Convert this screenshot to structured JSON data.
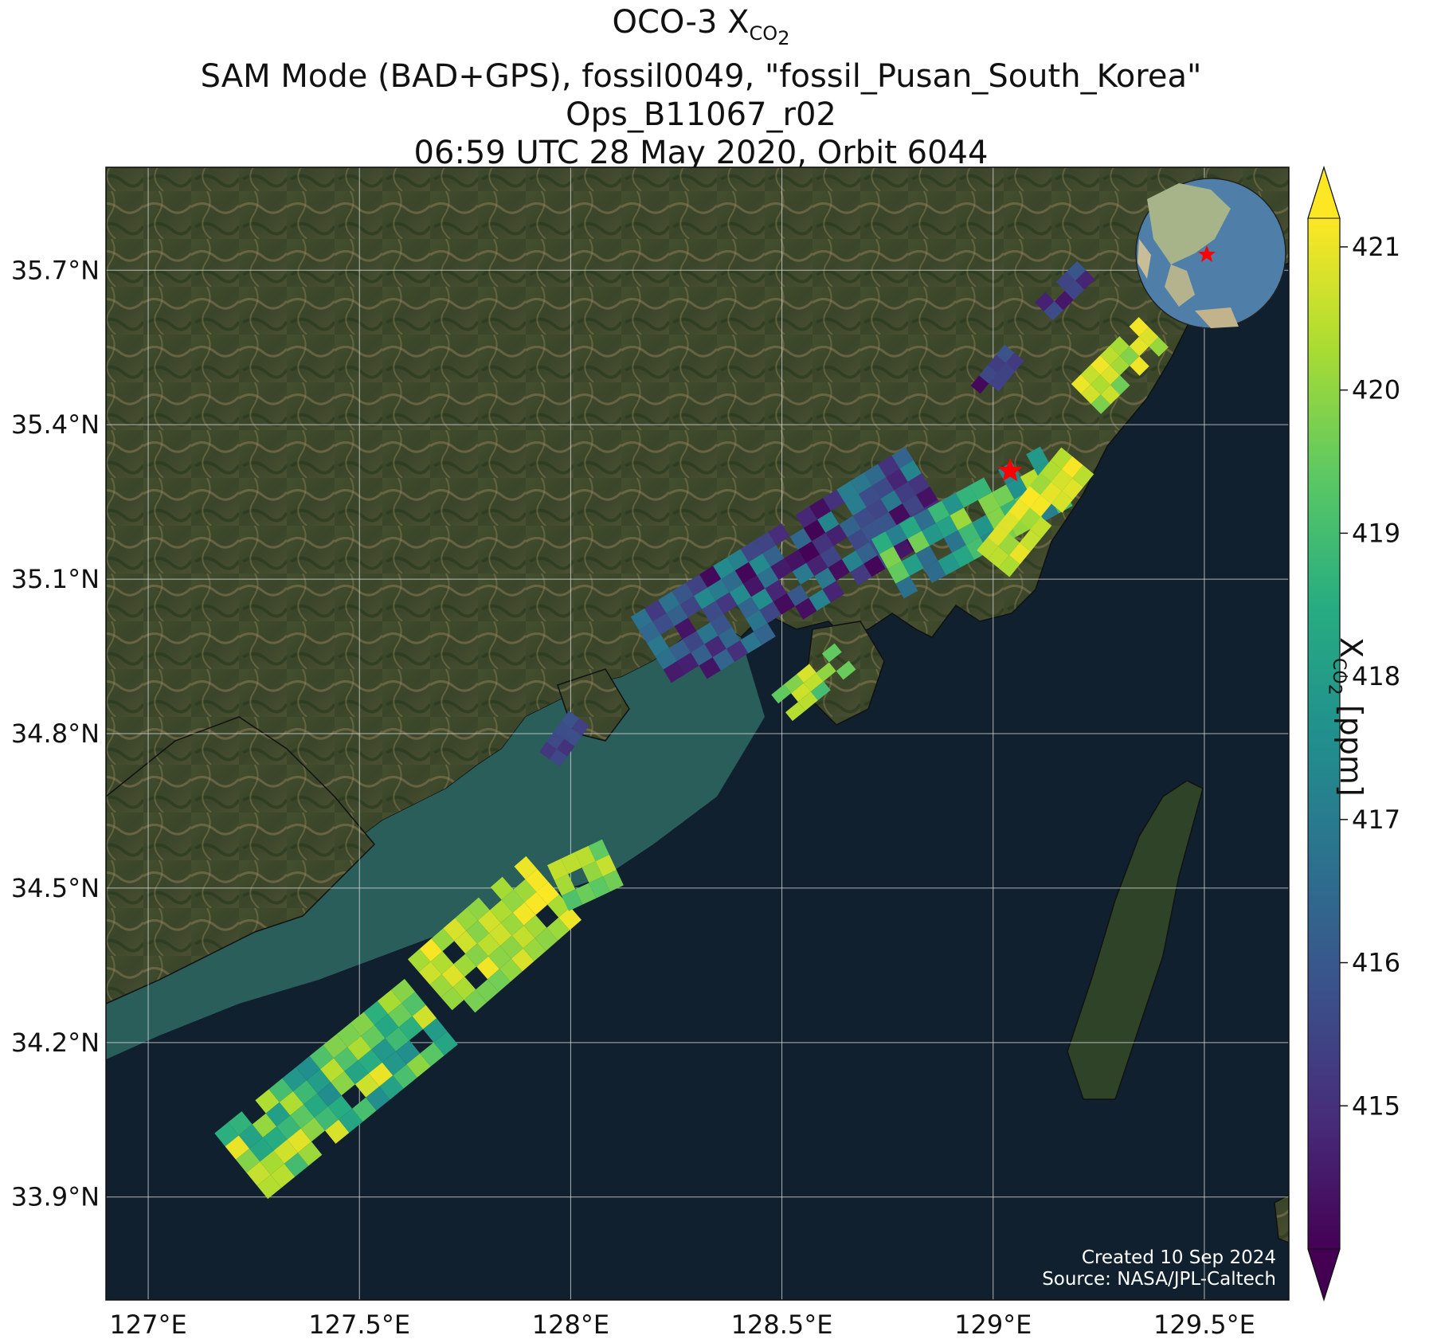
{
  "title": {
    "line1_main": "OCO-3 X",
    "line1_sub": "CO",
    "line1_subsub": "2",
    "line2": "SAM Mode (BAD+GPS), fossil0049, \"fossil_Pusan_South_Korea\"",
    "line3": "Ops_B11067_r02",
    "line4": "06:59 UTC 28 May 2020, Orbit 6044"
  },
  "map": {
    "lon_range": [
      126.9,
      129.7
    ],
    "lat_range": [
      33.7,
      35.9
    ],
    "lon_ticks": [
      {
        "value": 127.0,
        "label": "127°E"
      },
      {
        "value": 127.5,
        "label": "127.5°E"
      },
      {
        "value": 128.0,
        "label": "128°E"
      },
      {
        "value": 128.5,
        "label": "128.5°E"
      },
      {
        "value": 129.0,
        "label": "129°E"
      },
      {
        "value": 129.5,
        "label": "129.5°E"
      }
    ],
    "lat_ticks": [
      {
        "value": 35.7,
        "label": "35.7°N"
      },
      {
        "value": 35.4,
        "label": "35.4°N"
      },
      {
        "value": 35.1,
        "label": "35.1°N"
      },
      {
        "value": 34.8,
        "label": "34.8°N"
      },
      {
        "value": 34.5,
        "label": "34.5°N"
      },
      {
        "value": 34.2,
        "label": "34.2°N"
      },
      {
        "value": 33.9,
        "label": "33.9°N"
      }
    ],
    "target_site": {
      "lon": 129.04,
      "lat": 35.31,
      "marker": "red-star",
      "color": "#ff0000"
    },
    "credit_line1": "Created 10 Sep 2024",
    "credit_line2": "Source: NASA/JPL-Caltech",
    "colors": {
      "land": "#3f4a2e",
      "sea": "#10202f",
      "shallow_sea": "#2f6a62",
      "grid": "#d8d8d8"
    }
  },
  "colorbar": {
    "label_main": "X",
    "label_sub": "CO",
    "label_subsub": "2",
    "label_units": " [ppm]",
    "colormap": "viridis",
    "vmin": 414.0,
    "vmax": 421.2,
    "extend": "both",
    "ticks": [
      {
        "value": 415,
        "label": "415"
      },
      {
        "value": 416,
        "label": "416"
      },
      {
        "value": 417,
        "label": "417"
      },
      {
        "value": 418,
        "label": "418"
      },
      {
        "value": 419,
        "label": "419"
      },
      {
        "value": 420,
        "label": "420"
      },
      {
        "value": 421,
        "label": "421"
      }
    ]
  },
  "swaths": [
    {
      "name": "southern-swath-lower",
      "start": [
        127.22,
        33.96
      ],
      "end": [
        127.67,
        34.26
      ],
      "rows": 14,
      "cols": 5,
      "width_deg": 0.2,
      "xco2_range": [
        417.5,
        421.0
      ]
    },
    {
      "name": "southern-swath-upper",
      "start": [
        127.68,
        34.3
      ],
      "end": [
        127.96,
        34.5
      ],
      "rows": 10,
      "cols": 5,
      "width_deg": 0.2,
      "xco2_range": [
        419.5,
        421.2
      ]
    },
    {
      "name": "southern-swath-tail",
      "start": [
        127.97,
        34.5
      ],
      "end": [
        128.1,
        34.55
      ],
      "rows": 4,
      "cols": 3,
      "width_deg": 0.12,
      "xco2_range": [
        419.0,
        421.0
      ]
    },
    {
      "name": "central-swath",
      "start": [
        128.2,
        34.95
      ],
      "end": [
        128.85,
        35.28
      ],
      "rows": 20,
      "cols": 6,
      "width_deg": 0.22,
      "xco2_range": [
        414.0,
        417.5
      ]
    },
    {
      "name": "busan-swath",
      "start": [
        128.75,
        35.12
      ],
      "end": [
        129.15,
        35.3
      ],
      "rows": 12,
      "cols": 4,
      "width_deg": 0.16,
      "xco2_range": [
        416.5,
        420.5
      ]
    },
    {
      "name": "busan-yellow",
      "start": [
        129.0,
        35.13
      ],
      "end": [
        129.2,
        35.33
      ],
      "rows": 8,
      "cols": 3,
      "width_deg": 0.1,
      "xco2_range": [
        420.0,
        421.2
      ]
    },
    {
      "name": "ulsan-swath",
      "start": [
        129.22,
        35.45
      ],
      "end": [
        129.38,
        35.58
      ],
      "rows": 7,
      "cols": 3,
      "width_deg": 0.1,
      "xco2_range": [
        419.5,
        421.2
      ]
    },
    {
      "name": "northern-purple",
      "start": [
        129.12,
        35.62
      ],
      "end": [
        129.22,
        35.7
      ],
      "rows": 4,
      "cols": 2,
      "width_deg": 0.06,
      "xco2_range": [
        414.0,
        416.0
      ]
    },
    {
      "name": "north-mid-purple",
      "start": [
        128.97,
        35.46
      ],
      "end": [
        129.05,
        35.54
      ],
      "rows": 4,
      "cols": 2,
      "width_deg": 0.06,
      "xco2_range": [
        414.0,
        416.0
      ]
    },
    {
      "name": "island-cluster",
      "start": [
        128.5,
        34.85
      ],
      "end": [
        128.65,
        34.95
      ],
      "rows": 5,
      "cols": 3,
      "width_deg": 0.08,
      "xco2_range": [
        419.0,
        421.0
      ]
    },
    {
      "name": "west-small",
      "start": [
        127.95,
        34.75
      ],
      "end": [
        128.02,
        34.83
      ],
      "rows": 4,
      "cols": 2,
      "width_deg": 0.06,
      "xco2_range": [
        415.0,
        416.5
      ]
    }
  ]
}
